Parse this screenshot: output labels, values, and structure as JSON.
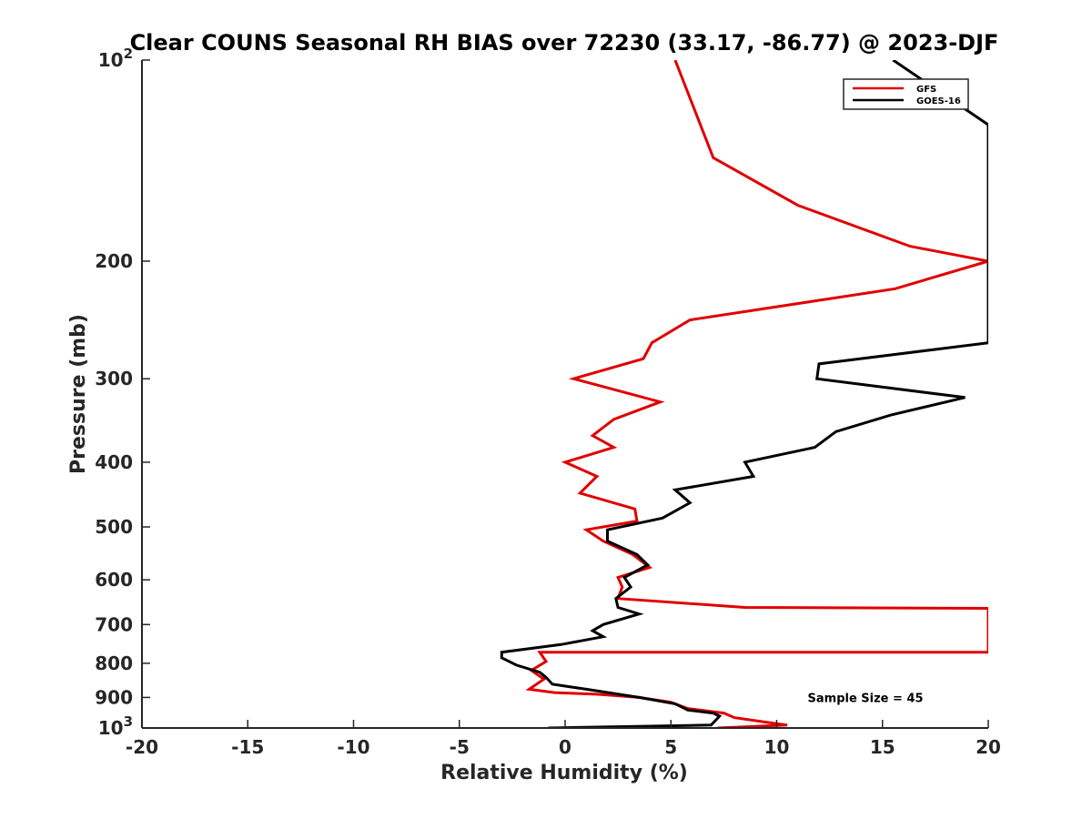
{
  "chart_data": {
    "type": "line",
    "title": "Clear COUNS Seasonal RH BIAS over 72230 (33.17, -86.77) @ 2023-DJF",
    "xlabel": "Relative Humidity (%)",
    "ylabel": "Pressure (mb)",
    "xlim": [
      -20,
      20
    ],
    "ylim": [
      100,
      1000
    ],
    "y_scale": "log",
    "y_reversed": true,
    "grid": false,
    "legend_position": "top-right",
    "x_ticks": [
      "-20",
      "-15",
      "-10",
      "-5",
      "0",
      "5",
      "10",
      "15",
      "20"
    ],
    "y_ticks": [
      {
        "value": 100,
        "base": "10",
        "exp": "2"
      },
      {
        "value": 200,
        "label": "200"
      },
      {
        "value": 300,
        "label": "300"
      },
      {
        "value": 400,
        "label": "400"
      },
      {
        "value": 500,
        "label": "500"
      },
      {
        "value": 600,
        "label": "600"
      },
      {
        "value": 700,
        "label": "700"
      },
      {
        "value": 800,
        "label": "800"
      },
      {
        "value": 900,
        "label": "900"
      },
      {
        "value": 1000,
        "base": "10",
        "exp": "3"
      }
    ],
    "series": [
      {
        "name": "GFS",
        "color": "#e00000",
        "points": [
          [
            5.2,
            100
          ],
          [
            7.0,
            140
          ],
          [
            11.0,
            165
          ],
          [
            16.3,
            190
          ],
          [
            20.0,
            200
          ],
          [
            15.6,
            220
          ],
          [
            5.9,
            245
          ],
          [
            4.1,
            265
          ],
          [
            3.7,
            280
          ],
          [
            0.4,
            300
          ],
          [
            4.5,
            325
          ],
          [
            2.3,
            345
          ],
          [
            1.3,
            365
          ],
          [
            2.3,
            380
          ],
          [
            0.0,
            400
          ],
          [
            1.5,
            420
          ],
          [
            0.7,
            445
          ],
          [
            3.3,
            470
          ],
          [
            3.4,
            490
          ],
          [
            1.0,
            505
          ],
          [
            1.8,
            525
          ],
          [
            3.2,
            550
          ],
          [
            4.0,
            575
          ],
          [
            2.5,
            595
          ],
          [
            2.7,
            615
          ],
          [
            2.5,
            640
          ],
          [
            8.5,
            660
          ],
          [
            20.0,
            662
          ],
          [
            20.0,
            770
          ],
          [
            -1.2,
            770
          ],
          [
            -0.9,
            795
          ],
          [
            -1.6,
            820
          ],
          [
            -1.0,
            845
          ],
          [
            -1.7,
            875
          ],
          [
            -0.5,
            885
          ],
          [
            1.5,
            890
          ],
          [
            3.5,
            900
          ],
          [
            5.0,
            915
          ],
          [
            5.8,
            935
          ],
          [
            7.5,
            950
          ],
          [
            8.0,
            965
          ],
          [
            9.5,
            980
          ],
          [
            10.5,
            990
          ],
          [
            7.2,
            1000
          ]
        ]
      },
      {
        "name": "GOES-16",
        "color": "#000000",
        "points": [
          [
            15.5,
            100
          ],
          [
            20.0,
            125
          ],
          [
            20.0,
            265
          ],
          [
            12.0,
            285
          ],
          [
            11.9,
            300
          ],
          [
            18.9,
            320
          ],
          [
            15.4,
            340
          ],
          [
            12.8,
            360
          ],
          [
            11.8,
            380
          ],
          [
            8.5,
            400
          ],
          [
            8.9,
            420
          ],
          [
            5.2,
            440
          ],
          [
            5.9,
            460
          ],
          [
            4.6,
            485
          ],
          [
            2.0,
            505
          ],
          [
            2.0,
            525
          ],
          [
            3.4,
            550
          ],
          [
            3.9,
            570
          ],
          [
            2.8,
            595
          ],
          [
            3.1,
            615
          ],
          [
            2.4,
            640
          ],
          [
            2.5,
            660
          ],
          [
            3.5,
            675
          ],
          [
            1.8,
            700
          ],
          [
            1.3,
            715
          ],
          [
            1.8,
            730
          ],
          [
            -0.2,
            750
          ],
          [
            -3.0,
            770
          ],
          [
            -3.0,
            785
          ],
          [
            -2.3,
            805
          ],
          [
            -1.2,
            825
          ],
          [
            -0.9,
            840
          ],
          [
            -0.6,
            860
          ],
          [
            1.0,
            875
          ],
          [
            3.5,
            900
          ],
          [
            5.2,
            920
          ],
          [
            5.8,
            940
          ],
          [
            7.0,
            950
          ],
          [
            7.3,
            960
          ],
          [
            7.1,
            975
          ],
          [
            6.9,
            990
          ],
          [
            -0.8,
            1000
          ]
        ]
      }
    ],
    "annotations": [
      {
        "text": "Sample Size = 45",
        "x": 13.7,
        "y": 900
      }
    ]
  }
}
